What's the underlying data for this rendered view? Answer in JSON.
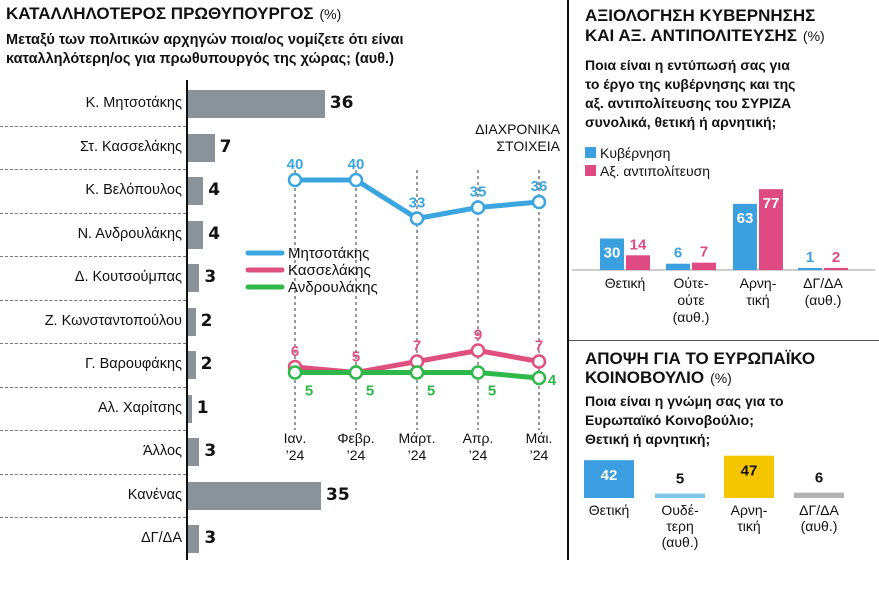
{
  "pm_panel": {
    "title": "ΚΑΤΑΛΛΗΛΟΤΕΡΟΣ ΠΡΩΘΥΠΟΥΡΓΟΣ",
    "unit": "(%)",
    "question_line1": "Μεταξύ των πολιτικών αρχηγών ποια/ος νομίζετε ότι είναι",
    "question_line2": "καταλληλότερη/ος για πρωθυπουργός της χώρας; (αυθ.)",
    "trend_title_line1": "ΔΙΑΧΡΟΝΙΚΑ",
    "trend_title_line2": "ΣΤΟΙΧΕΙΑ"
  },
  "gov_panel": {
    "title_line1": "ΑΞΙΟΛΟΓΗΣΗ ΚΥΒΕΡΝΗΣΗΣ",
    "title_line2": "ΚΑΙ ΑΞ. ΑΝΤΙΠΟΛΙΤΕΥΣΗΣ",
    "unit": "(%)",
    "question_lines": [
      "Ποια είναι η εντύπωσή σας για",
      "το έργο της κυβέρνησης και της",
      "αξ. αντιπολίτευσης του ΣΥΡΙΖΑ",
      "συνολικά, θετική ή αρνητική;"
    ]
  },
  "eu_panel": {
    "title_line1": "ΑΠΟΨΗ ΓΙΑ ΤΟ ΕΥΡΩΠΑΪΚΟ",
    "title_line2": "ΚΟΙΝΟΒΟΥΛΙΟ",
    "unit": "(%)",
    "question_lines": [
      "Ποια είναι η γνώμη σας για το",
      "Ευρωπαϊκό Κοινοβούλιο;",
      "Θετική ή αρνητική;"
    ]
  },
  "chart_data": [
    {
      "type": "bar",
      "orientation": "horizontal",
      "categories": [
        "Κ. Μητσοτάκης",
        "Στ. Κασσελάκης",
        "Κ. Βελόπουλος",
        "Ν. Ανδρουλάκης",
        "Δ. Κουτσούμπας",
        "Ζ. Κωνσταντοπούλου",
        "Γ. Βαρουφάκης",
        "Αλ. Χαρίτσης",
        "Άλλος",
        "Κανένας",
        "ΔΓ/ΔΑ"
      ],
      "values": [
        36,
        7,
        4,
        4,
        3,
        2,
        2,
        1,
        3,
        35,
        3
      ],
      "color": "#8a939a"
    },
    {
      "type": "line",
      "x": [
        "Ιαν. '24",
        "Φεβρ. '24",
        "Μάρτ. '24",
        "Απρ. '24",
        "Μάι. '24"
      ],
      "x_lines": [
        [
          "Ιαν.",
          "’24"
        ],
        [
          "Φεβρ.",
          "’24"
        ],
        [
          "Μάρτ.",
          "’24"
        ],
        [
          "Απρ.",
          "’24"
        ],
        [
          "Μάι.",
          "’24"
        ]
      ],
      "series": [
        {
          "name": "Μητσοτάκης",
          "values": [
            40,
            40,
            33,
            35,
            36
          ],
          "color": "#3ba5e0"
        },
        {
          "name": "Κασσελάκης",
          "values": [
            6,
            5,
            7,
            9,
            7
          ],
          "color": "#e0507e"
        },
        {
          "name": "Ανδρουλάκης",
          "values": [
            5,
            5,
            5,
            5,
            4
          ],
          "color": "#2fb84a"
        }
      ]
    },
    {
      "type": "bar",
      "categories": [
        "Θετική",
        "Ούτε-ούτε (αυθ.)",
        "Αρνητική",
        "ΔΓ/ΔΑ (αυθ.)"
      ],
      "category_lines": [
        [
          "Θετική"
        ],
        [
          "Ούτε-",
          "ούτε",
          "(αυθ.)"
        ],
        [
          "Αρνη-",
          "τική"
        ],
        [
          "ΔΓ/ΔΑ",
          "(αυθ.)"
        ]
      ],
      "series": [
        {
          "name": "Κυβέρνηση",
          "values": [
            30,
            6,
            63,
            1
          ],
          "color": "#3ba0e0"
        },
        {
          "name": "Αξ. αντιπολίτευση",
          "values": [
            14,
            7,
            77,
            2
          ],
          "color": "#e04a82"
        }
      ],
      "legend": "top-left"
    },
    {
      "type": "bar",
      "categories": [
        "Θετική",
        "Ουδέτερη (αυθ.)",
        "Αρνητική",
        "ΔΓ/ΔΑ (αυθ.)"
      ],
      "category_lines": [
        [
          "Θετική"
        ],
        [
          "Ουδέ-",
          "τερη",
          "(αυθ.)"
        ],
        [
          "Αρνη-",
          "τική"
        ],
        [
          "ΔΓ/ΔΑ",
          "(αυθ.)"
        ]
      ],
      "values": [
        42,
        5,
        47,
        6
      ],
      "colors": [
        "#3b9ee0",
        "#7fc4ea",
        "#f5c500",
        "#b3b3b3"
      ]
    }
  ]
}
